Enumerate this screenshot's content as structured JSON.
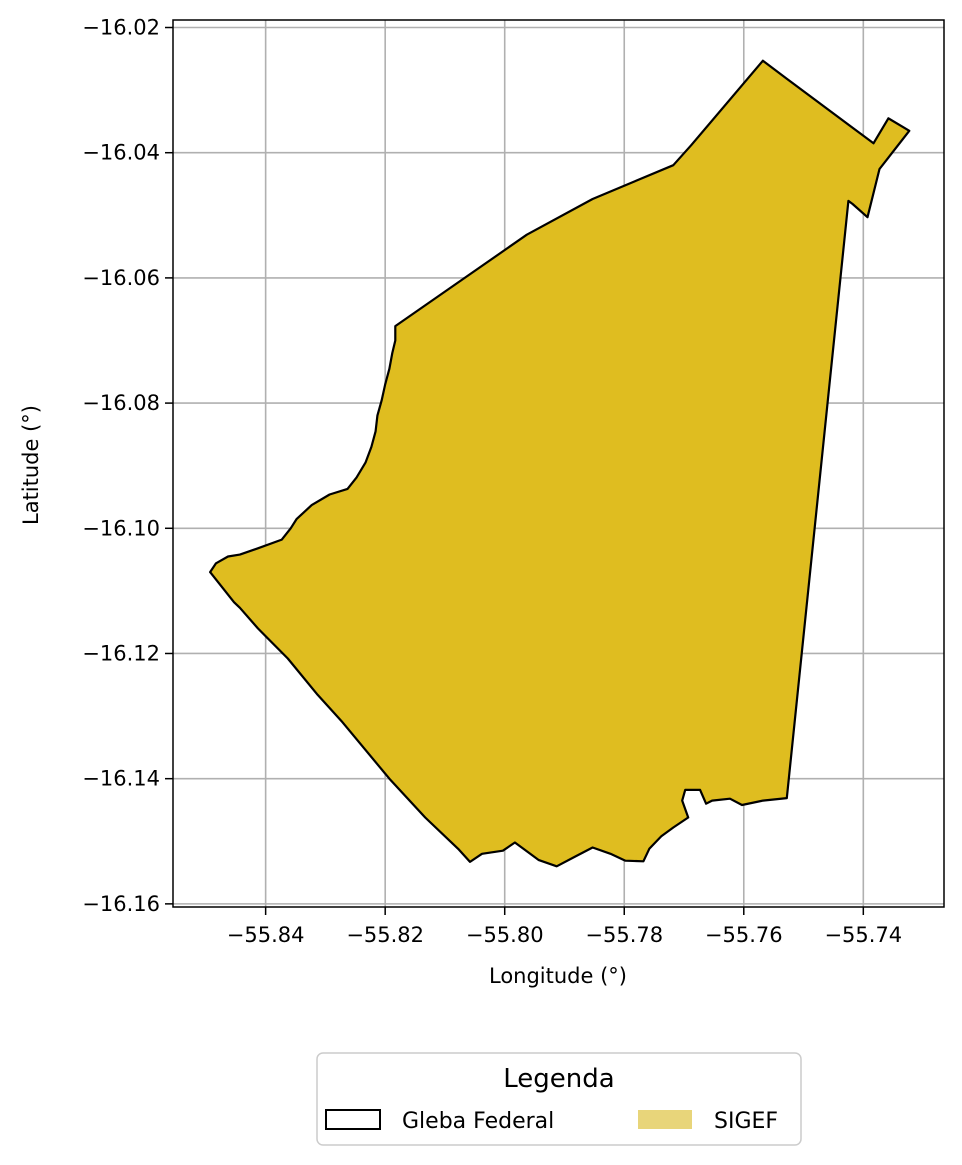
{
  "chart_data": {
    "type": "map",
    "xlabel": "Longitude (°)",
    "ylabel": "Latitude (°)",
    "xlim": [
      -55.8555,
      -55.7265
    ],
    "ylim": [
      -16.1605,
      -16.0188
    ],
    "xticks": [
      -55.84,
      -55.82,
      -55.8,
      -55.78,
      -55.76,
      -55.74
    ],
    "xtick_labels": [
      "−55.84",
      "−55.82",
      "−55.80",
      "−55.78",
      "−55.76",
      "−55.74"
    ],
    "yticks": [
      -16.02,
      -16.04,
      -16.06,
      -16.08,
      -16.1,
      -16.12,
      -16.14,
      -16.16
    ],
    "ytick_labels": [
      "−16.02",
      "−16.04",
      "−16.06",
      "−16.08",
      "−16.10",
      "−16.12",
      "−16.14",
      "−16.16"
    ],
    "grid": true,
    "legend": {
      "title": "Legenda",
      "placement": "bottom-center",
      "entries": [
        {
          "label": "Gleba Federal",
          "style": "outline",
          "color": "#000000"
        },
        {
          "label": "SIGEF",
          "style": "fill",
          "color": "#e8d57a"
        }
      ]
    },
    "layers": [
      {
        "name": "SIGEF",
        "fill_color": "#dfbd20",
        "edge_color": "#000000",
        "polygon": [
          [
            -55.8183,
            -16.0677
          ],
          [
            -55.8073,
            -16.0604
          ],
          [
            -55.7963,
            -16.0531
          ],
          [
            -55.7853,
            -16.0474
          ],
          [
            -55.7718,
            -16.042
          ],
          [
            -55.7688,
            -16.0388
          ],
          [
            -55.7568,
            -16.0253
          ],
          [
            -55.7528,
            -16.0282
          ],
          [
            -55.7383,
            -16.0385
          ],
          [
            -55.7358,
            -16.0345
          ],
          [
            -55.7323,
            -16.0365
          ],
          [
            -55.7373,
            -16.0426
          ],
          [
            -55.7393,
            -16.0503
          ],
          [
            -55.7418,
            -16.0482
          ],
          [
            -55.7425,
            -16.0477
          ],
          [
            -55.7528,
            -16.1431
          ],
          [
            -55.7568,
            -16.1435
          ],
          [
            -55.7603,
            -16.1442
          ],
          [
            -55.7623,
            -16.1432
          ],
          [
            -55.7653,
            -16.1435
          ],
          [
            -55.7663,
            -16.144
          ],
          [
            -55.7673,
            -16.1418
          ],
          [
            -55.7698,
            -16.1418
          ],
          [
            -55.7703,
            -16.1435
          ],
          [
            -55.7693,
            -16.1462
          ],
          [
            -55.7718,
            -16.1478
          ],
          [
            -55.7738,
            -16.1492
          ],
          [
            -55.7758,
            -16.1512
          ],
          [
            -55.7768,
            -16.1532
          ],
          [
            -55.7798,
            -16.1531
          ],
          [
            -55.7823,
            -16.152
          ],
          [
            -55.7853,
            -16.151
          ],
          [
            -55.7883,
            -16.1525
          ],
          [
            -55.7913,
            -16.154
          ],
          [
            -55.7943,
            -16.153
          ],
          [
            -55.7963,
            -16.1516
          ],
          [
            -55.7983,
            -16.1502
          ],
          [
            -55.8003,
            -16.1515
          ],
          [
            -55.8038,
            -16.152
          ],
          [
            -55.8058,
            -16.1533
          ],
          [
            -55.8078,
            -16.1512
          ],
          [
            -55.8133,
            -16.1462
          ],
          [
            -55.8193,
            -16.14
          ],
          [
            -55.8273,
            -16.1308
          ],
          [
            -55.8313,
            -16.1266
          ],
          [
            -55.8363,
            -16.1208
          ],
          [
            -55.8413,
            -16.116
          ],
          [
            -55.8443,
            -16.1127
          ],
          [
            -55.8453,
            -16.1118
          ],
          [
            -55.8493,
            -16.107
          ],
          [
            -55.8483,
            -16.1056
          ],
          [
            -55.8463,
            -16.1045
          ],
          [
            -55.8443,
            -16.1042
          ],
          [
            -55.8413,
            -16.1032
          ],
          [
            -55.8373,
            -16.1018
          ],
          [
            -55.8358,
            -16.1
          ],
          [
            -55.8348,
            -16.0985
          ],
          [
            -55.8323,
            -16.0963
          ],
          [
            -55.8293,
            -16.0946
          ],
          [
            -55.8263,
            -16.0937
          ],
          [
            -55.8248,
            -16.0919
          ],
          [
            -55.8233,
            -16.0895
          ],
          [
            -55.8223,
            -16.087
          ],
          [
            -55.8216,
            -16.0845
          ],
          [
            -55.8213,
            -16.082
          ],
          [
            -55.8206,
            -16.0796
          ],
          [
            -55.82,
            -16.077
          ],
          [
            -55.8193,
            -16.0745
          ],
          [
            -55.8188,
            -16.072
          ],
          [
            -55.8183,
            -16.07
          ]
        ]
      },
      {
        "name": "Gleba Federal",
        "fill_color": "none",
        "edge_color": "#000000"
      }
    ]
  }
}
